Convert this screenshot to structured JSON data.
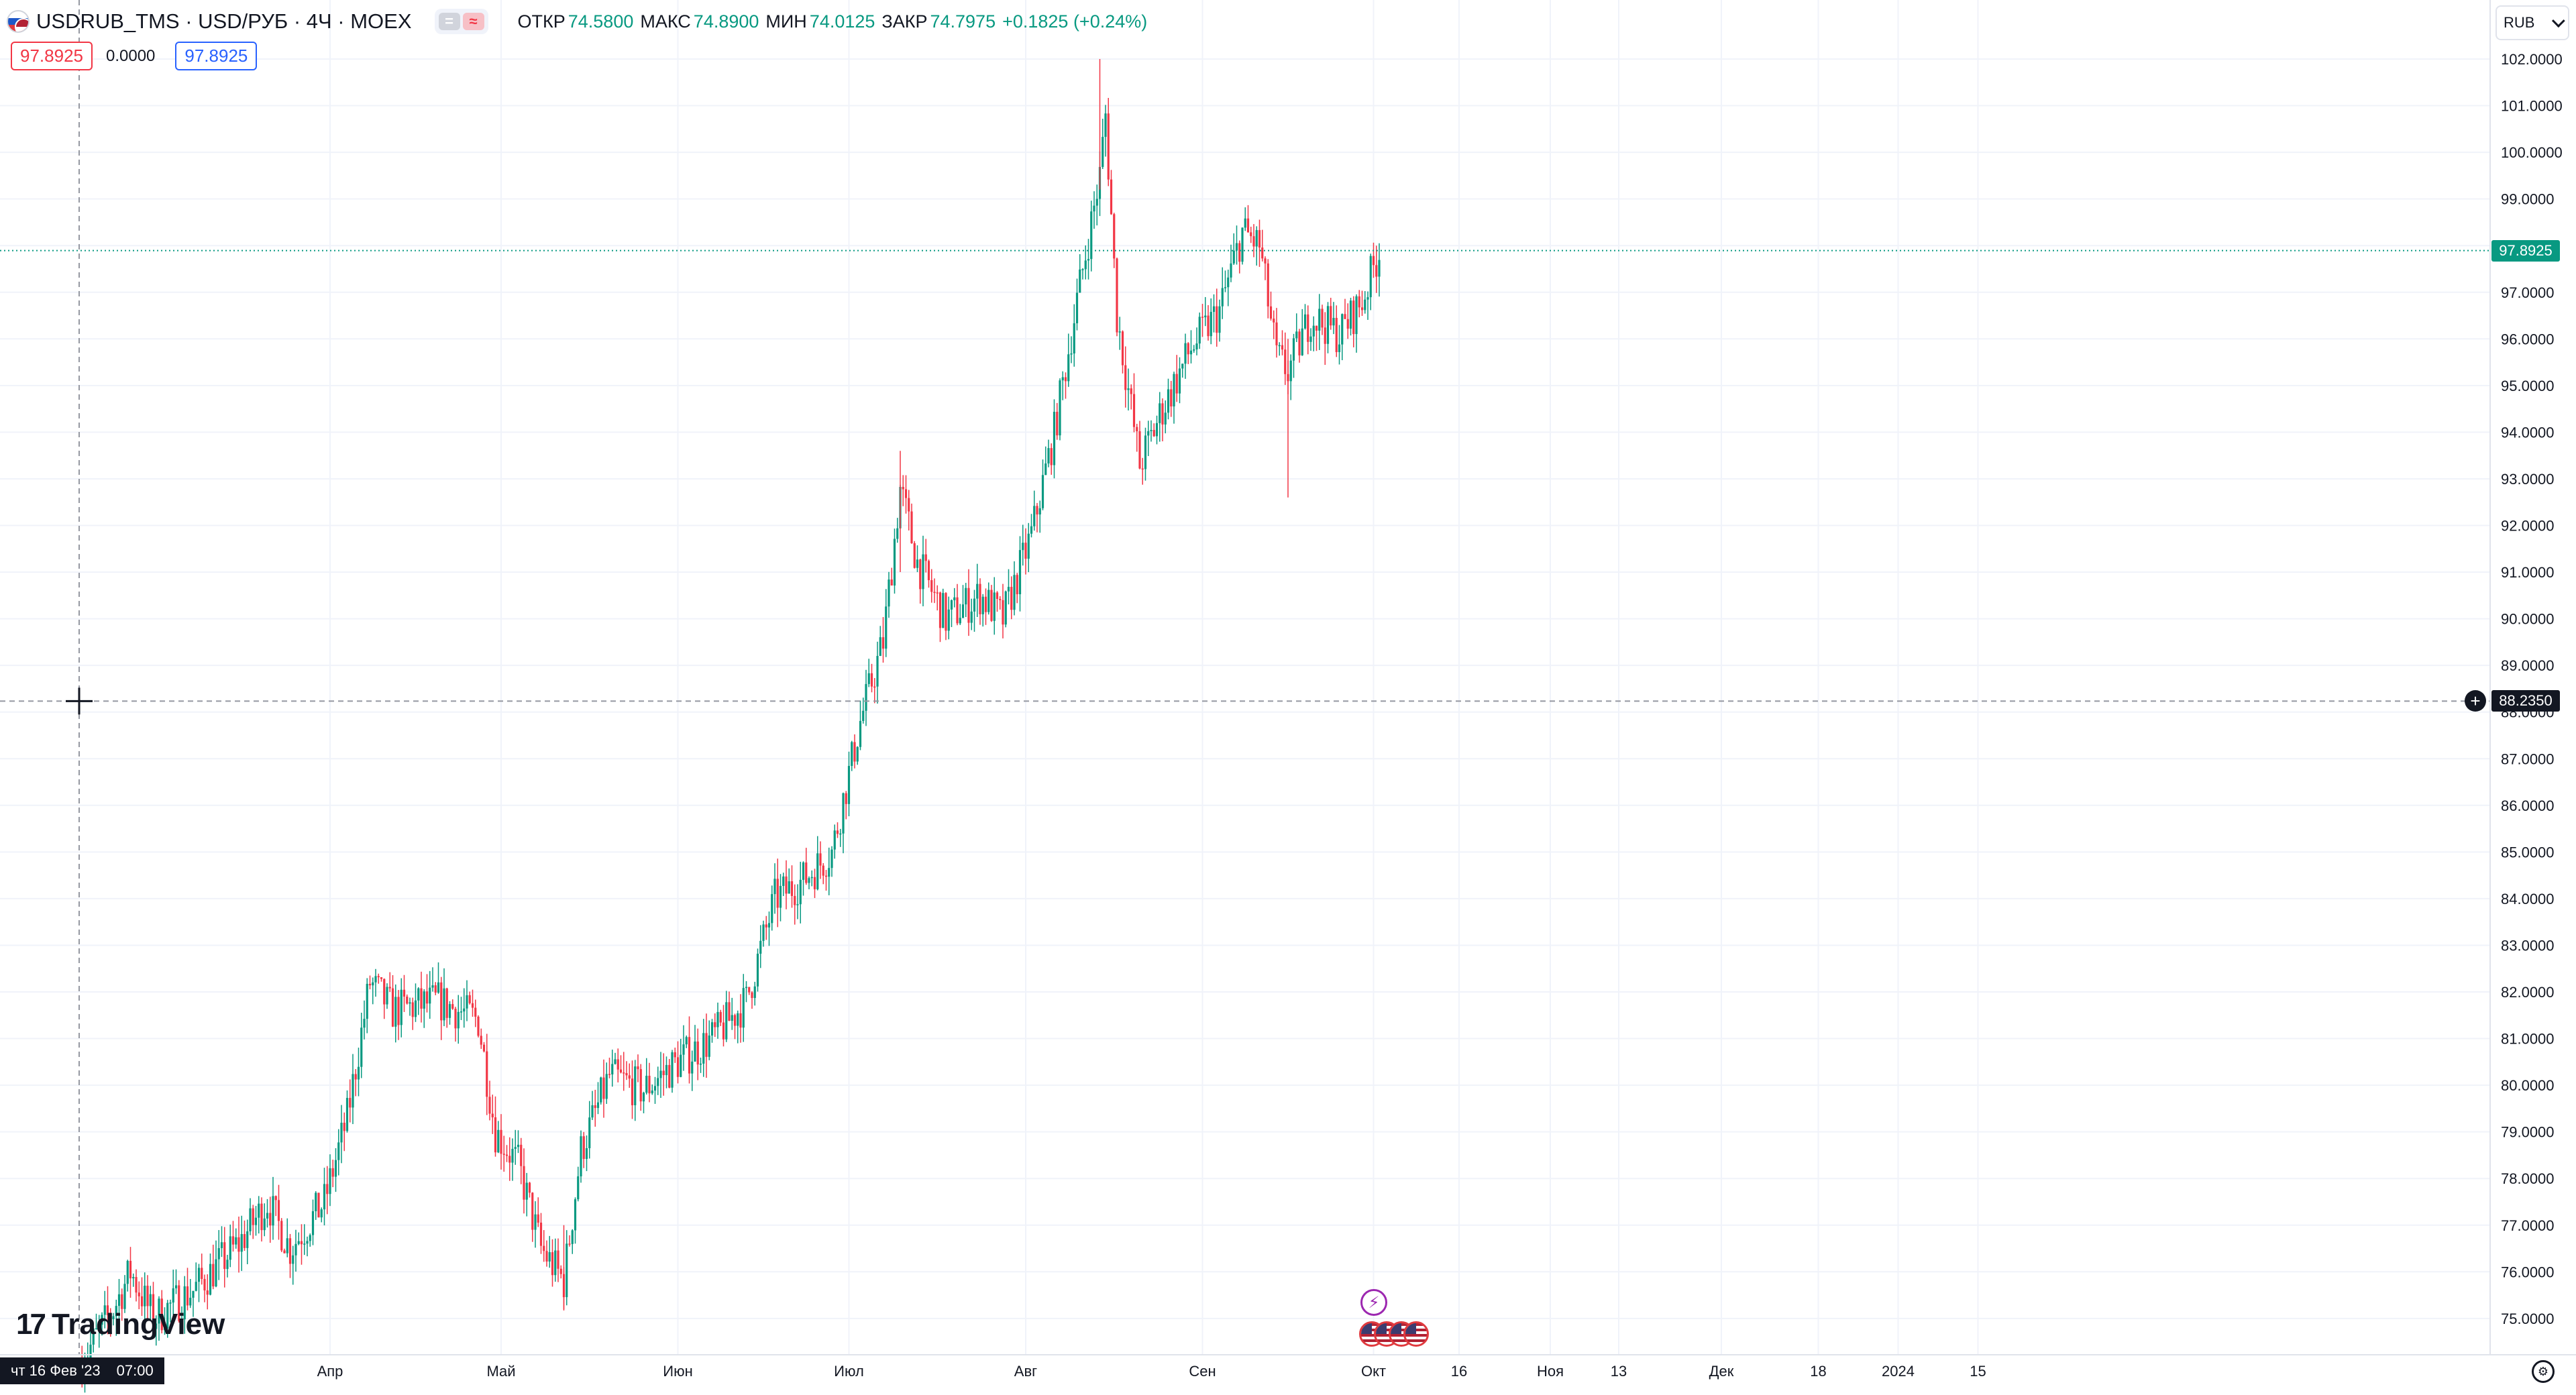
{
  "header": {
    "symbol": "USDRUB_TMS · USD/РУБ · 4Ч · MOEX",
    "pill_gray": "=",
    "pill_pink": "≈",
    "open_label": "ОТКР",
    "open_value": "74.5800",
    "high_label": "МАКС",
    "high_value": "74.8900",
    "low_label": "МИН",
    "low_value": "74.0125",
    "close_label": "ЗАКР",
    "close_value": "74.7975",
    "change_value": "+0.1825 (+0.24%)"
  },
  "order_row": {
    "sell_price": "97.8925",
    "spread": "0.0000",
    "buy_price": "97.8925"
  },
  "currency_select": {
    "value": "RUB"
  },
  "price_axis": {
    "ticks": [
      "102.0000",
      "101.0000",
      "100.0000",
      "99.0000",
      "98.0000",
      "97.0000",
      "96.0000",
      "95.0000",
      "94.0000",
      "93.0000",
      "92.0000",
      "91.0000",
      "90.0000",
      "89.0000",
      "88.0000",
      "87.0000",
      "86.0000",
      "85.0000",
      "84.0000",
      "83.0000",
      "82.0000",
      "81.0000",
      "80.0000",
      "79.0000",
      "78.0000",
      "77.0000",
      "76.0000",
      "75.0000"
    ],
    "last_price_badge": "97.8925",
    "crosshair_price_badge": "88.2350"
  },
  "time_axis": {
    "labels": [
      "Апр",
      "Май",
      "Июн",
      "Июл",
      "Авг",
      "Сен",
      "Окт",
      "16",
      "Ноя",
      "13",
      "Дек",
      "18",
      "2024",
      "15"
    ],
    "crosshair_date": "чт 16 Фев '23",
    "crosshair_time": "07:00"
  },
  "logo": {
    "text": "TradingView",
    "mark": "17"
  },
  "events": {
    "lightning": "⚡",
    "flag_count": 4
  },
  "colors": {
    "up": "#089981",
    "down": "#f23645",
    "grid": "#f0f3fa",
    "last_line": "#089981",
    "crosshair": "#9598a1"
  },
  "icons": {
    "settings": "gear-icon",
    "currency_chevron": "chevron-down-icon",
    "add_alert": "plus-circle-icon"
  },
  "chart_data": {
    "type": "candlestick",
    "title": "USDRUB_TMS · USD/РУБ · 4Ч · MOEX",
    "ylim": [
      74.5,
      102.7
    ],
    "last_price": 97.8925,
    "crosshair_price": 88.235,
    "date_range": [
      "2023-02-16",
      "2024-01-20"
    ],
    "anchors": [
      [
        "2023-02-16",
        74.0
      ],
      [
        "2023-02-22",
        75.2
      ],
      [
        "2023-02-25",
        76.0
      ],
      [
        "2023-03-01",
        75.0
      ],
      [
        "2023-03-08",
        75.6
      ],
      [
        "2023-03-16",
        76.6
      ],
      [
        "2023-03-21",
        77.5
      ],
      [
        "2023-03-25",
        76.5
      ],
      [
        "2023-03-31",
        77.5
      ],
      [
        "2023-04-04",
        79.3
      ],
      [
        "2023-04-08",
        82.2
      ],
      [
        "2023-04-12",
        81.6
      ],
      [
        "2023-04-20",
        81.8
      ],
      [
        "2023-04-27",
        81.4
      ],
      [
        "2023-04-30",
        79.0
      ],
      [
        "2023-05-04",
        78.3
      ],
      [
        "2023-05-08",
        76.5
      ],
      [
        "2023-05-12",
        75.8
      ],
      [
        "2023-05-15",
        78.6
      ],
      [
        "2023-05-20",
        80.2
      ],
      [
        "2023-05-26",
        79.9
      ],
      [
        "2023-06-01",
        80.5
      ],
      [
        "2023-06-07",
        81.0
      ],
      [
        "2023-06-13",
        81.8
      ],
      [
        "2023-06-18",
        84.0
      ],
      [
        "2023-06-23",
        84.4
      ],
      [
        "2023-06-28",
        85.0
      ],
      [
        "2023-07-03",
        87.8
      ],
      [
        "2023-07-07",
        89.5
      ],
      [
        "2023-07-10",
        92.8
      ],
      [
        "2023-07-13",
        91.2
      ],
      [
        "2023-07-18",
        90.0
      ],
      [
        "2023-07-24",
        90.5
      ],
      [
        "2023-07-28",
        90.0
      ],
      [
        "2023-08-02",
        91.8
      ],
      [
        "2023-08-06",
        94.0
      ],
      [
        "2023-08-10",
        96.8
      ],
      [
        "2023-08-14",
        99.5
      ],
      [
        "2023-08-15",
        100.8
      ],
      [
        "2023-08-17",
        96.5
      ],
      [
        "2023-08-21",
        93.3
      ],
      [
        "2023-08-25",
        94.5
      ],
      [
        "2023-08-30",
        95.8
      ],
      [
        "2023-09-04",
        96.6
      ],
      [
        "2023-09-08",
        98.3
      ],
      [
        "2023-09-11",
        98.0
      ],
      [
        "2023-09-14",
        95.6
      ],
      [
        "2023-09-16",
        95.3
      ],
      [
        "2023-09-20",
        96.5
      ],
      [
        "2023-09-25",
        96.1
      ],
      [
        "2023-09-29",
        96.8
      ],
      [
        "2023-10-02",
        97.8925
      ]
    ]
  }
}
